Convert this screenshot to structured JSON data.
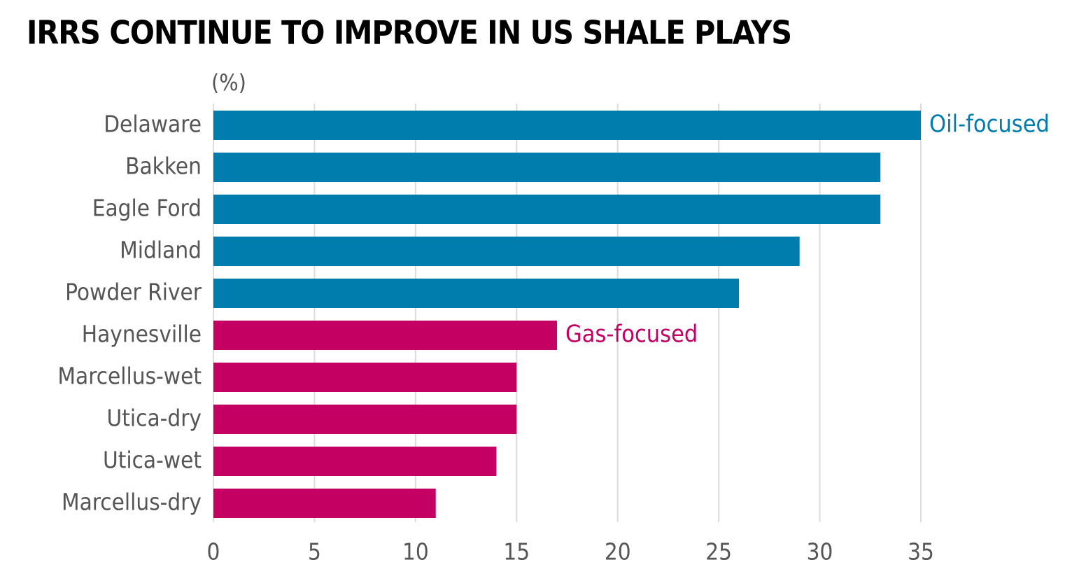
{
  "chart_data": {
    "type": "hbar",
    "title": "IRRS CONTINUE TO IMPROVE IN US SHALE PLAYS",
    "unit_label": "(%)",
    "categories": [
      "Delaware",
      "Bakken",
      "Eagle Ford",
      "Midland",
      "Powder River",
      "Haynesville",
      "Marcellus-wet",
      "Utica-dry",
      "Utica-wet",
      "Marcellus-dry"
    ],
    "series": [
      {
        "name": "Oil-focused",
        "color": "#007dad",
        "values": [
          35,
          33,
          33,
          29,
          26,
          null,
          null,
          null,
          null,
          null
        ]
      },
      {
        "name": "Gas-focused",
        "color": "#c40063",
        "values": [
          null,
          null,
          null,
          null,
          null,
          17,
          15,
          15,
          14,
          11
        ]
      }
    ],
    "xlim": [
      0,
      40
    ],
    "xticks": [
      0,
      5,
      10,
      15,
      20,
      25,
      30,
      35
    ],
    "grid": true
  }
}
